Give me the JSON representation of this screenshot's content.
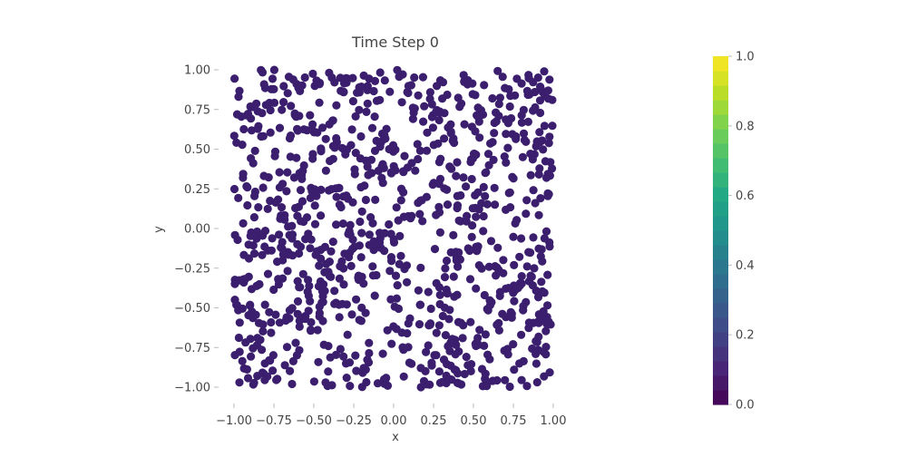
{
  "chart_data": {
    "type": "scatter",
    "title": "Time Step 0",
    "xlabel": "x",
    "ylabel": "y",
    "xlim": [
      -1.05,
      1.05
    ],
    "ylim": [
      -1.05,
      1.05
    ],
    "x_ticks": [
      -1.0,
      -0.75,
      -0.5,
      -0.25,
      0.0,
      0.25,
      0.5,
      0.75,
      1.0
    ],
    "x_tick_labels": [
      "−1.00",
      "−0.75",
      "−0.50",
      "−0.25",
      "0.00",
      "0.25",
      "0.50",
      "0.75",
      "1.00"
    ],
    "y_ticks": [
      1.0,
      0.75,
      0.5,
      0.25,
      0.0,
      -0.25,
      -0.5,
      -0.75,
      -1.0
    ],
    "y_tick_labels": [
      "1.00",
      "0.75",
      "0.50",
      "0.25",
      "0.00",
      "−0.25",
      "−0.50",
      "−0.75",
      "−1.00"
    ],
    "grid": false,
    "colorscale": "viridis",
    "color_range": [
      0.0,
      1.0
    ],
    "colorbar_ticks": [
      0.0,
      0.2,
      0.4,
      0.6,
      0.8,
      1.0
    ],
    "colorbar_tick_labels": [
      "0.0",
      "0.2",
      "0.4",
      "0.6",
      "0.8",
      "1.0"
    ],
    "marker_color": "#3b1f6e",
    "point_values_note_count": 1000,
    "point_value": 0.08,
    "seed": 20240521,
    "density_holes": [
      {
        "cx": -0.42,
        "cy": 0.08,
        "r": 0.1,
        "keep": 0.25
      },
      {
        "cx": -0.05,
        "cy": -0.6,
        "r": 0.12,
        "keep": 0.25
      },
      {
        "cx": 0.2,
        "cy": 0.3,
        "r": 0.08,
        "keep": 0.35
      },
      {
        "cx": 0.65,
        "cy": -0.85,
        "r": 0.08,
        "keep": 0.35
      },
      {
        "cx": -0.8,
        "cy": 0.35,
        "r": 0.08,
        "keep": 0.35
      }
    ]
  }
}
